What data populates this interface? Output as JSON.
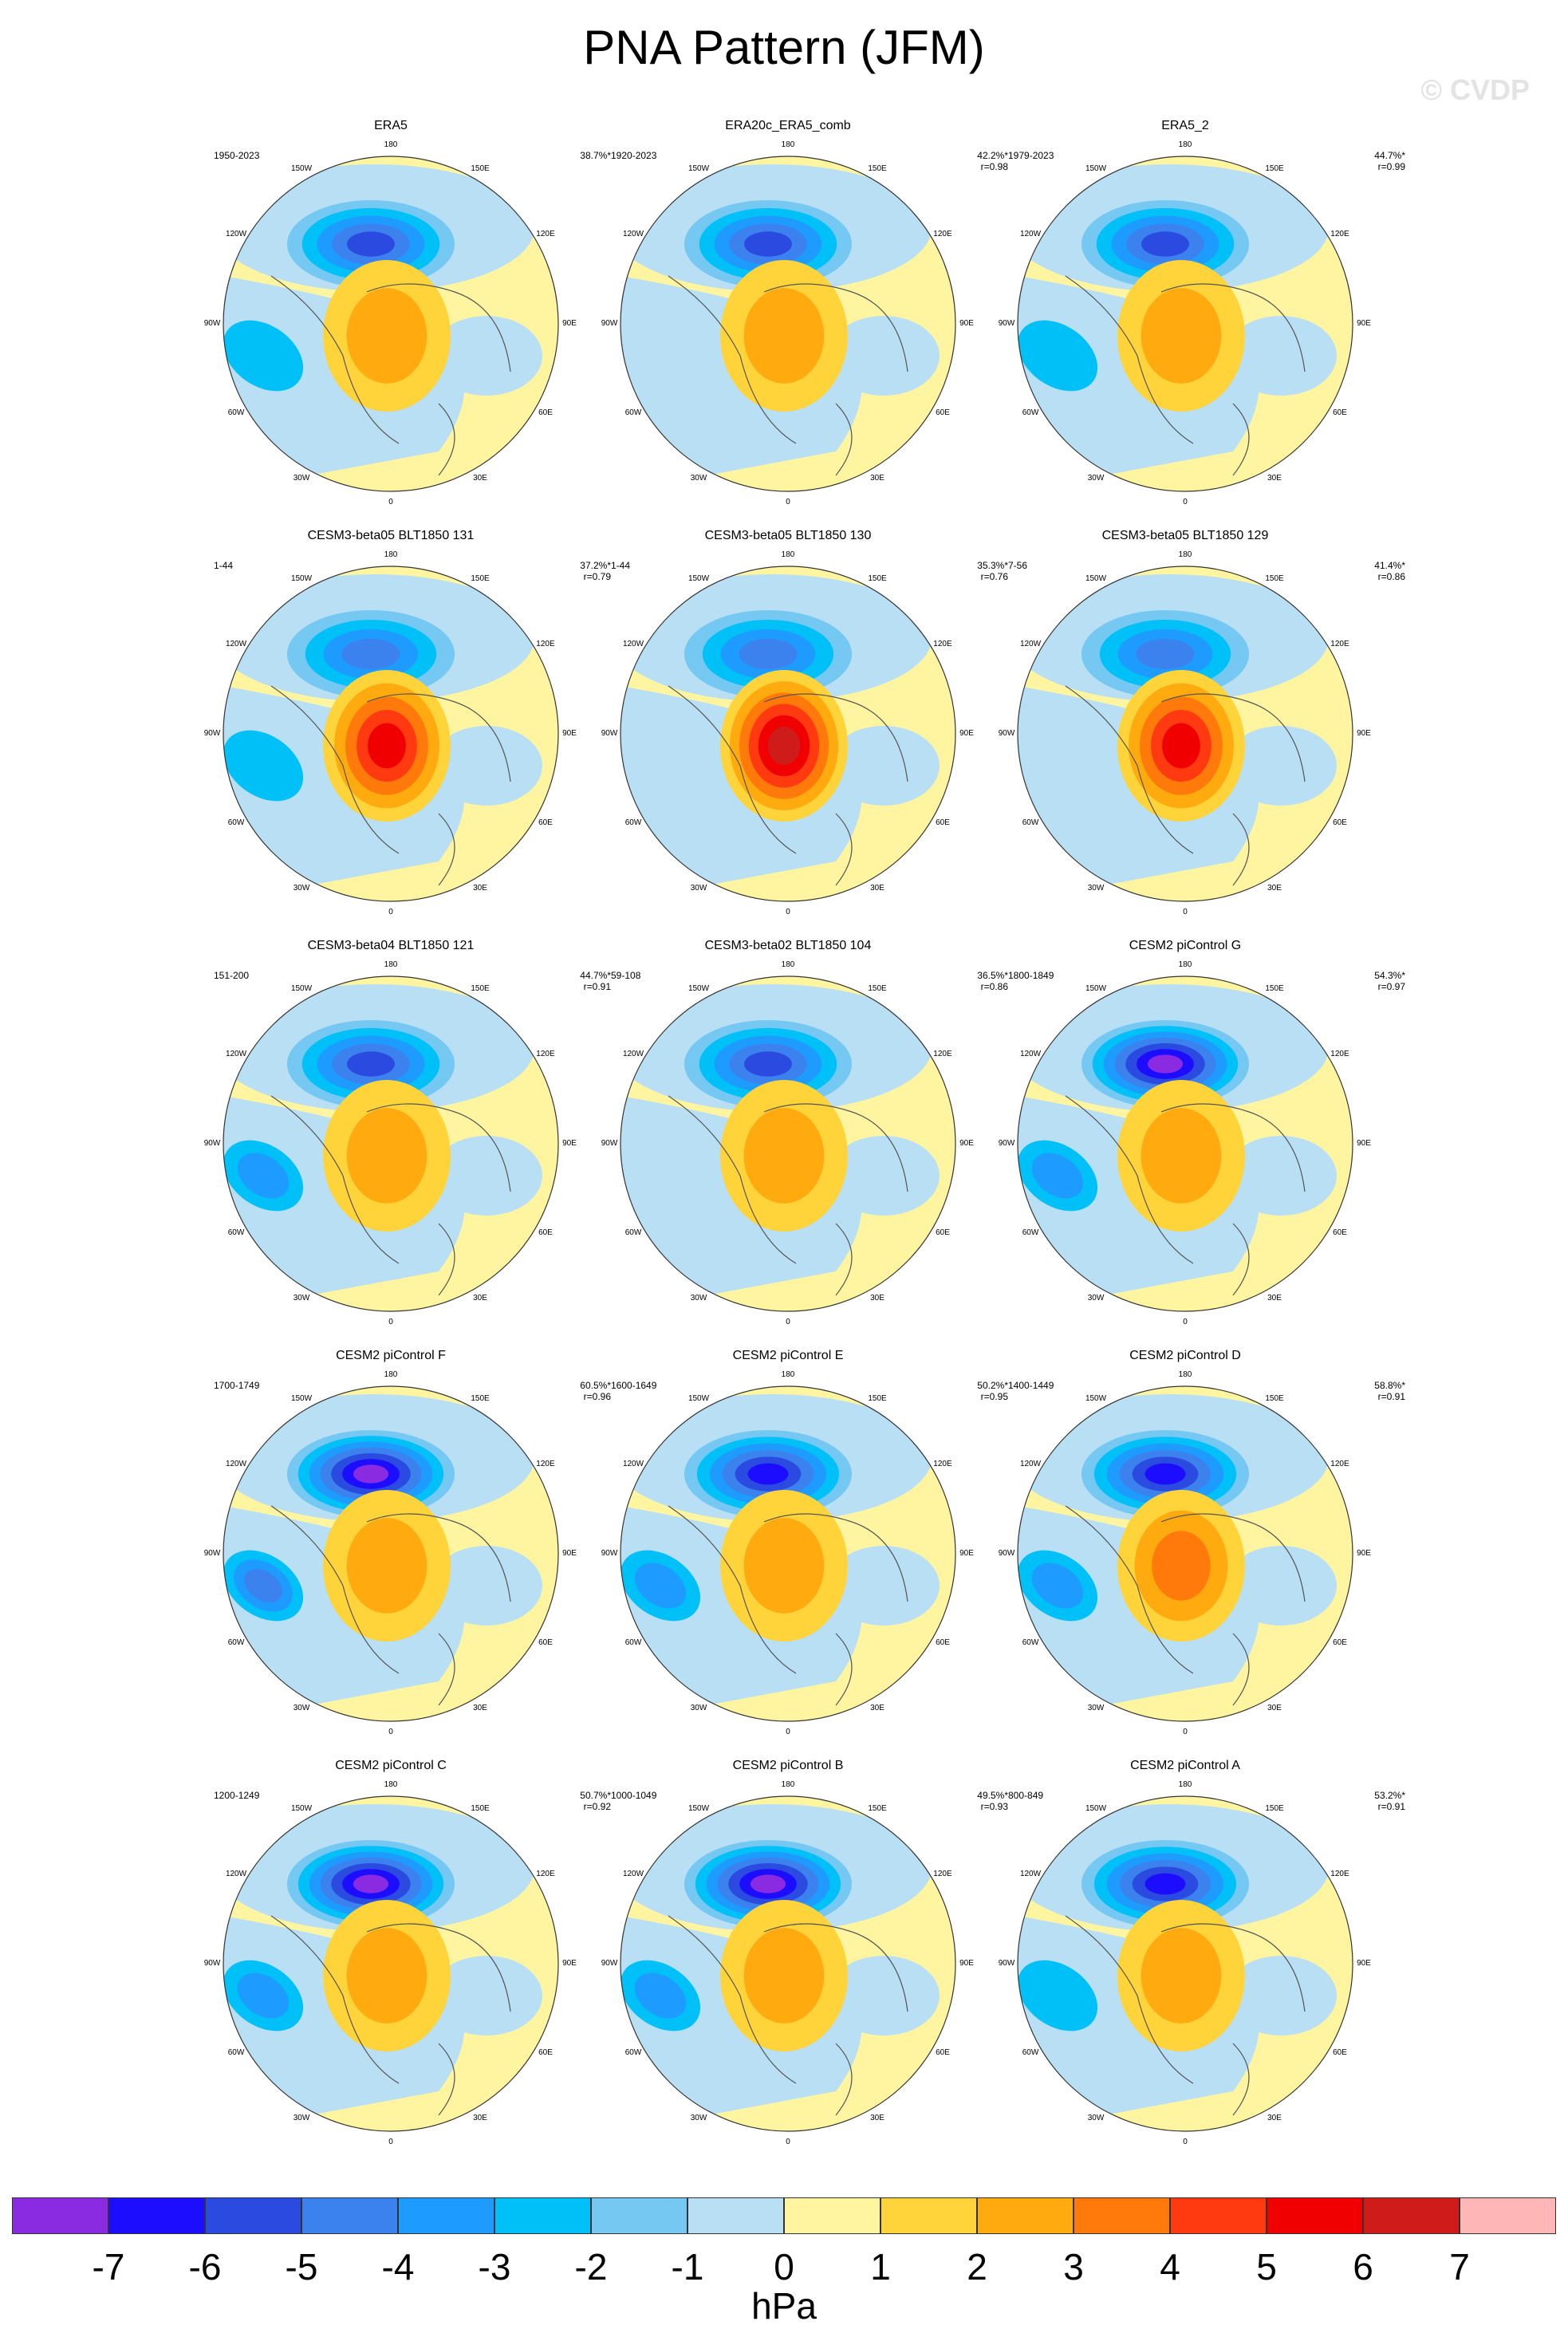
{
  "title": "PNA Pattern (JFM)",
  "watermark": "© CVDP",
  "map_labels": [
    "180",
    "150E",
    "120E",
    "90E",
    "60E",
    "30E",
    "0",
    "30W",
    "60W",
    "90W",
    "120W",
    "150W"
  ],
  "panels": [
    {
      "title": "ERA5",
      "years": "1950-2023",
      "pct": "38.7%*",
      "r": "",
      "low_strength": 5,
      "high_strength": 2,
      "atl_strength": 1
    },
    {
      "title": "ERA20c_ERA5_comb",
      "years": "1920-2023",
      "pct": "42.2%*",
      "r": "r=0.98",
      "low_strength": 5,
      "high_strength": 2,
      "atl_strength": 0
    },
    {
      "title": "ERA5_2",
      "years": "1979-2023",
      "pct": "44.7%*",
      "r": "r=0.99",
      "low_strength": 5,
      "high_strength": 2,
      "atl_strength": 1
    },
    {
      "title": "CESM3-beta05 BLT1850 131",
      "years": "1-44",
      "pct": "37.2%*",
      "r": "r=0.79",
      "low_strength": 4,
      "high_strength": 5,
      "atl_strength": 1
    },
    {
      "title": "CESM3-beta05 BLT1850 130",
      "years": "1-44",
      "pct": "35.3%*",
      "r": "r=0.76",
      "low_strength": 4,
      "high_strength": 6,
      "atl_strength": 0
    },
    {
      "title": "CESM3-beta05 BLT1850 129",
      "years": "7-56",
      "pct": "41.4%*",
      "r": "r=0.86",
      "low_strength": 4,
      "high_strength": 5,
      "atl_strength": 0
    },
    {
      "title": "CESM3-beta04 BLT1850 121",
      "years": "151-200",
      "pct": "44.7%*",
      "r": "r=0.91",
      "low_strength": 5,
      "high_strength": 2,
      "atl_strength": 2
    },
    {
      "title": "CESM3-beta02 BLT1850 104",
      "years": "59-108",
      "pct": "36.5%*",
      "r": "r=0.86",
      "low_strength": 5,
      "high_strength": 2,
      "atl_strength": 0
    },
    {
      "title": "CESM2 piControl G",
      "years": "1800-1849",
      "pct": "54.3%*",
      "r": "r=0.97",
      "low_strength": 7,
      "high_strength": 2,
      "atl_strength": 2
    },
    {
      "title": "CESM2 piControl F",
      "years": "1700-1749",
      "pct": "60.5%*",
      "r": "r=0.96",
      "low_strength": 7,
      "high_strength": 2,
      "atl_strength": 3
    },
    {
      "title": "CESM2 piControl E",
      "years": "1600-1649",
      "pct": "50.2%*",
      "r": "r=0.95",
      "low_strength": 6,
      "high_strength": 2,
      "atl_strength": 2
    },
    {
      "title": "CESM2 piControl D",
      "years": "1400-1449",
      "pct": "58.8%*",
      "r": "r=0.91",
      "low_strength": 6,
      "high_strength": 3,
      "atl_strength": 2
    },
    {
      "title": "CESM2 piControl C",
      "years": "1200-1249",
      "pct": "50.7%*",
      "r": "r=0.92",
      "low_strength": 7,
      "high_strength": 2,
      "atl_strength": 2
    },
    {
      "title": "CESM2 piControl B",
      "years": "1000-1049",
      "pct": "49.5%*",
      "r": "r=0.93",
      "low_strength": 7,
      "high_strength": 2,
      "atl_strength": 2
    },
    {
      "title": "CESM2 piControl A",
      "years": "800-849",
      "pct": "53.2%*",
      "r": "r=0.91",
      "low_strength": 6,
      "high_strength": 2,
      "atl_strength": 1
    }
  ],
  "colorbar": {
    "units": "hPa",
    "labels": [
      "-7",
      "-6",
      "-5",
      "-4",
      "-3",
      "-2",
      "-1",
      "0",
      "1",
      "2",
      "3",
      "4",
      "5",
      "6",
      "7"
    ],
    "colors": [
      "#8a2be2",
      "#1c0dff",
      "#2a4ae0",
      "#3b82ee",
      "#1e9bff",
      "#00c0f8",
      "#74c8f2",
      "#b8dff3",
      "#fff5a0",
      "#ffd33a",
      "#ffab0f",
      "#ff7a0a",
      "#ff3a10",
      "#f00000",
      "#d01b1b",
      "#ffb6b6"
    ]
  }
}
